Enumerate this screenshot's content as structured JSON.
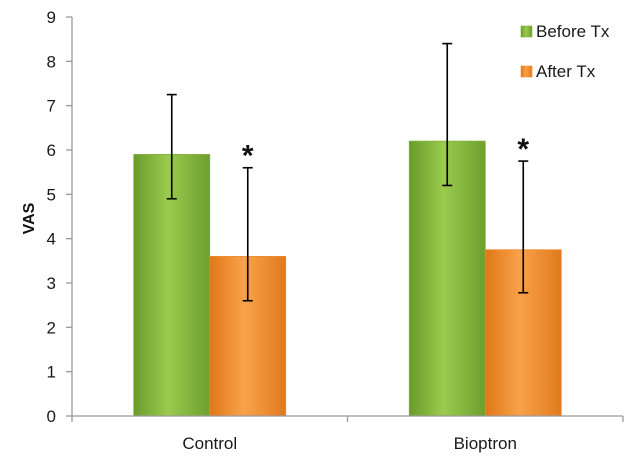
{
  "chart_data": {
    "type": "bar",
    "categories": [
      "Control",
      "Bioptron"
    ],
    "series": [
      {
        "name": "Before Tx",
        "color": "#7fb13a",
        "values": [
          5.9,
          6.2
        ],
        "error_low": [
          4.9,
          5.2
        ],
        "error_high": [
          7.25,
          8.4
        ]
      },
      {
        "name": "After Tx",
        "color": "#f08a2a",
        "values": [
          3.6,
          3.75
        ],
        "error_low": [
          2.6,
          2.78
        ],
        "error_high": [
          5.6,
          5.75
        ]
      }
    ],
    "annotations": [
      "*",
      "*"
    ],
    "title": "",
    "xlabel": "",
    "ylabel": "VAS",
    "ylim": [
      0,
      9
    ],
    "yticks": [
      "0",
      "1",
      "2",
      "3",
      "4",
      "5",
      "6",
      "7",
      "8",
      "9"
    ],
    "grid": false,
    "legend_position": "top-right"
  }
}
